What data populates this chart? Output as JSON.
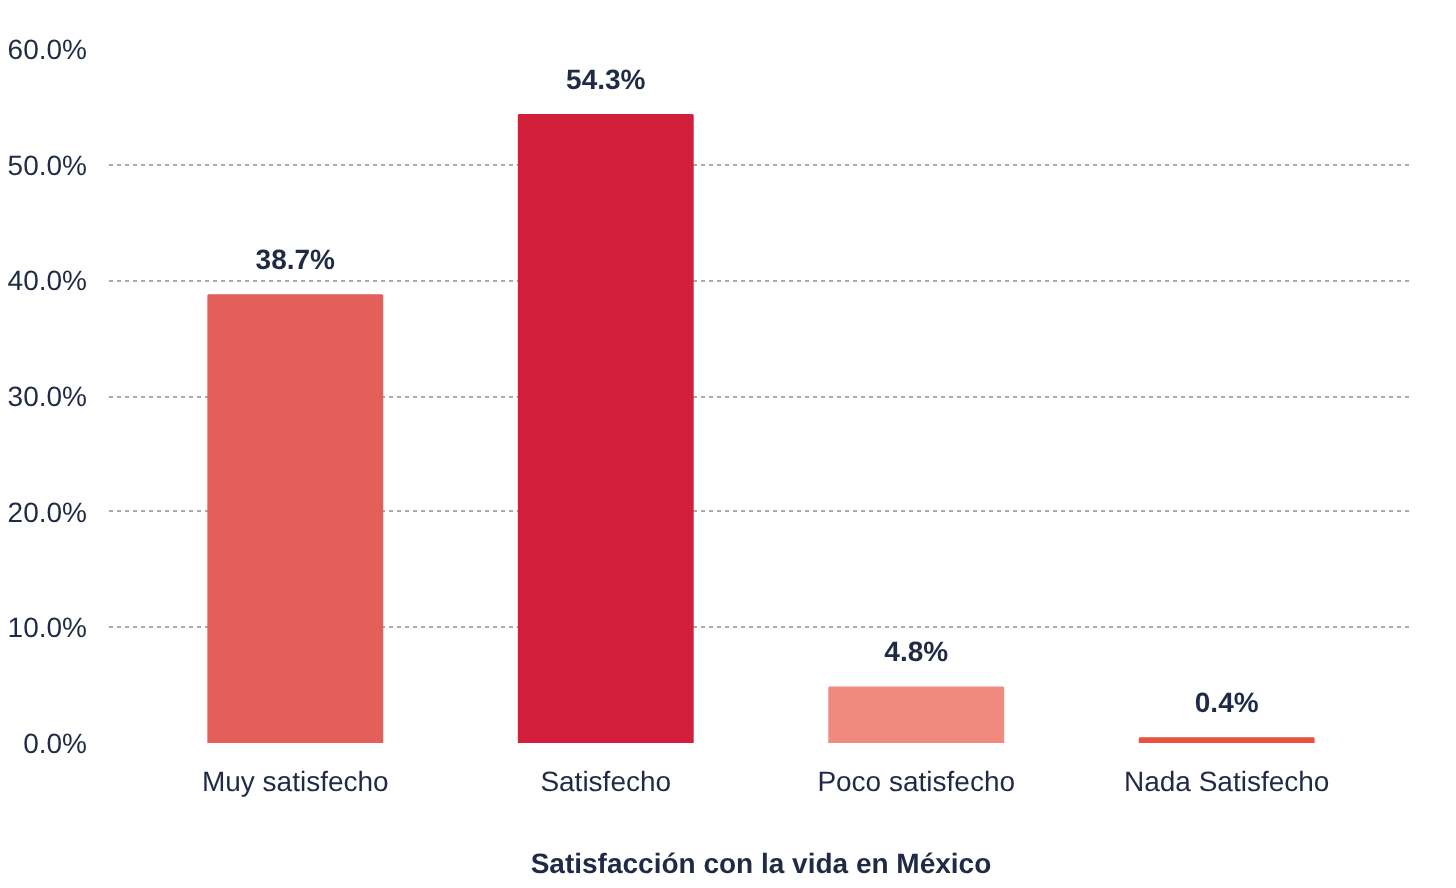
{
  "chart_data": {
    "type": "bar",
    "xlabel": "Satisfacción con la vida en México",
    "categories": [
      "Muy satisfecho",
      "Satisfecho",
      "Poco satisfecho",
      "Nada Satisfecho"
    ],
    "values": [
      38.7,
      54.3,
      4.8,
      0.4
    ],
    "colors": [
      "#e35f5a",
      "#d31f3b",
      "#f08a7e",
      "#e8533f"
    ],
    "value_labels": [
      "38.7%",
      "54.3%",
      "4.8%",
      "0.4%"
    ],
    "ylim": [
      0,
      60
    ],
    "yticks": [
      {
        "value": 0,
        "label": "0.0%"
      },
      {
        "value": 10,
        "label": "10.0%"
      },
      {
        "value": 20,
        "label": "20.0%"
      },
      {
        "value": 30,
        "label": "30.0%"
      },
      {
        "value": 40,
        "label": "40.0%"
      },
      {
        "value": 50,
        "label": "50.0%"
      },
      {
        "value": 60,
        "label": "60.0%"
      }
    ],
    "grid": "y"
  }
}
